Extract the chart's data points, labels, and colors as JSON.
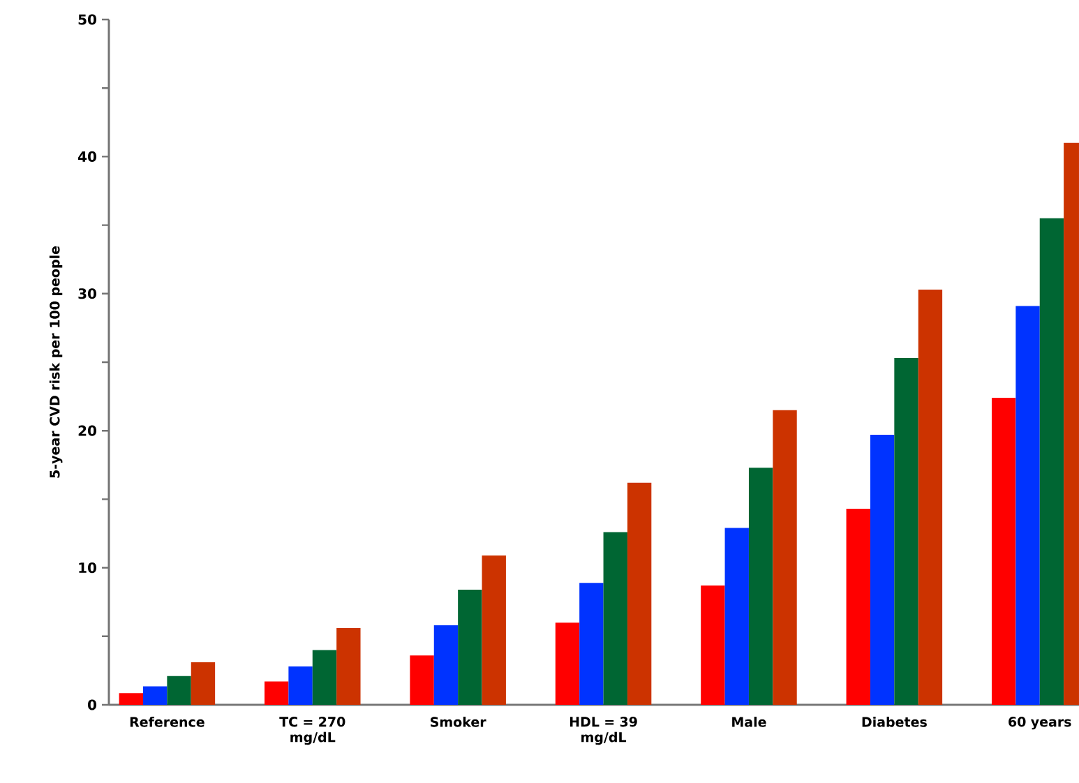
{
  "chart_data": {
    "type": "bar",
    "ylabel": "5-year CVD risk per 100 people",
    "categories": [
      "Reference",
      "TC = 270 mg/dL",
      "Smoker",
      "HDL = 39 mg/dL",
      "Male",
      "Diabetes",
      "60 years"
    ],
    "series": [
      {
        "color": "#ff0000",
        "values": [
          0.85,
          1.7,
          3.6,
          6.0,
          8.7,
          14.3,
          22.4
        ]
      },
      {
        "color": "#0033ff",
        "values": [
          1.35,
          2.8,
          5.8,
          8.9,
          12.9,
          19.7,
          29.1
        ]
      },
      {
        "color": "#006633",
        "values": [
          2.1,
          4.0,
          8.4,
          12.6,
          17.3,
          25.3,
          35.5
        ]
      },
      {
        "color": "#cc3300",
        "values": [
          3.1,
          5.6,
          10.9,
          16.2,
          21.5,
          30.3,
          41.0
        ]
      }
    ],
    "ylim": [
      0,
      50
    ],
    "yticks": [
      0,
      {
        "value": 5,
        "label": null
      },
      10,
      {
        "value": 15,
        "label": null
      },
      20,
      {
        "value": 25,
        "label": null
      },
      30,
      {
        "value": 35,
        "label": null
      },
      40,
      {
        "value": 45,
        "label": null
      },
      50
    ]
  }
}
